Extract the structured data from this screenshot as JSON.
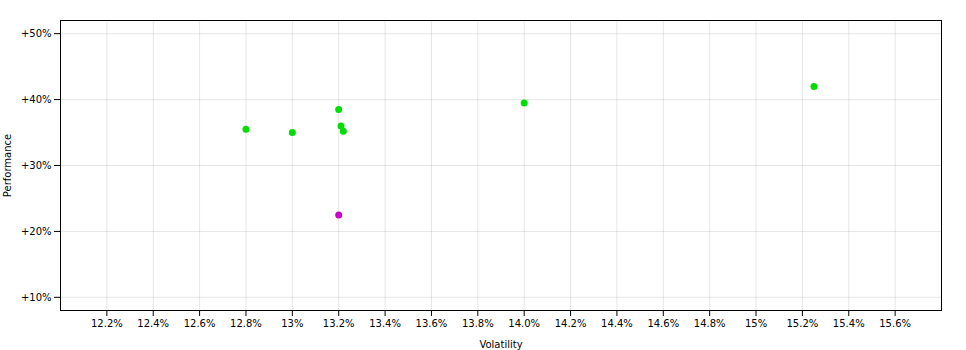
{
  "chart_data": {
    "type": "scatter",
    "xlabel": "Volatility",
    "ylabel": "Performance",
    "series": [
      {
        "color": "#00dd00",
        "x": [
          12.8,
          13.0,
          13.2,
          13.21,
          13.22,
          14.0,
          15.25
        ],
        "values": [
          35.5,
          35.0,
          38.5,
          36.0,
          35.2,
          39.5,
          42.0
        ]
      },
      {
        "color": "#cc00cc",
        "x": [
          13.2
        ],
        "values": [
          22.5
        ]
      }
    ],
    "xlim": [
      12.0,
      15.8
    ],
    "ylim": [
      8.0,
      52.0
    ],
    "xticks": [
      {
        "value": 12.2,
        "label": "12.2%"
      },
      {
        "value": 12.4,
        "label": "12.4%"
      },
      {
        "value": 12.6,
        "label": "12.6%"
      },
      {
        "value": 12.8,
        "label": "12.8%"
      },
      {
        "value": 13.0,
        "label": "13%"
      },
      {
        "value": 13.2,
        "label": "13.2%"
      },
      {
        "value": 13.4,
        "label": "13.4%"
      },
      {
        "value": 13.6,
        "label": "13.6%"
      },
      {
        "value": 13.8,
        "label": "13.8%"
      },
      {
        "value": 14.0,
        "label": "14.0%"
      },
      {
        "value": 14.2,
        "label": "14.2%"
      },
      {
        "value": 14.4,
        "label": "14.4%"
      },
      {
        "value": 14.6,
        "label": "14.6%"
      },
      {
        "value": 14.8,
        "label": "14.8%"
      },
      {
        "value": 15.0,
        "label": "15%"
      },
      {
        "value": 15.2,
        "label": "15.2%"
      },
      {
        "value": 15.4,
        "label": "15.4%"
      },
      {
        "value": 15.6,
        "label": "15.6%"
      }
    ],
    "yticks": [
      {
        "value": 10,
        "label": "+10%"
      },
      {
        "value": 20,
        "label": "+20%"
      },
      {
        "value": 30,
        "label": "+30%"
      },
      {
        "value": 40,
        "label": "+40%"
      },
      {
        "value": 50,
        "label": "+50%"
      }
    ],
    "grid": true
  }
}
